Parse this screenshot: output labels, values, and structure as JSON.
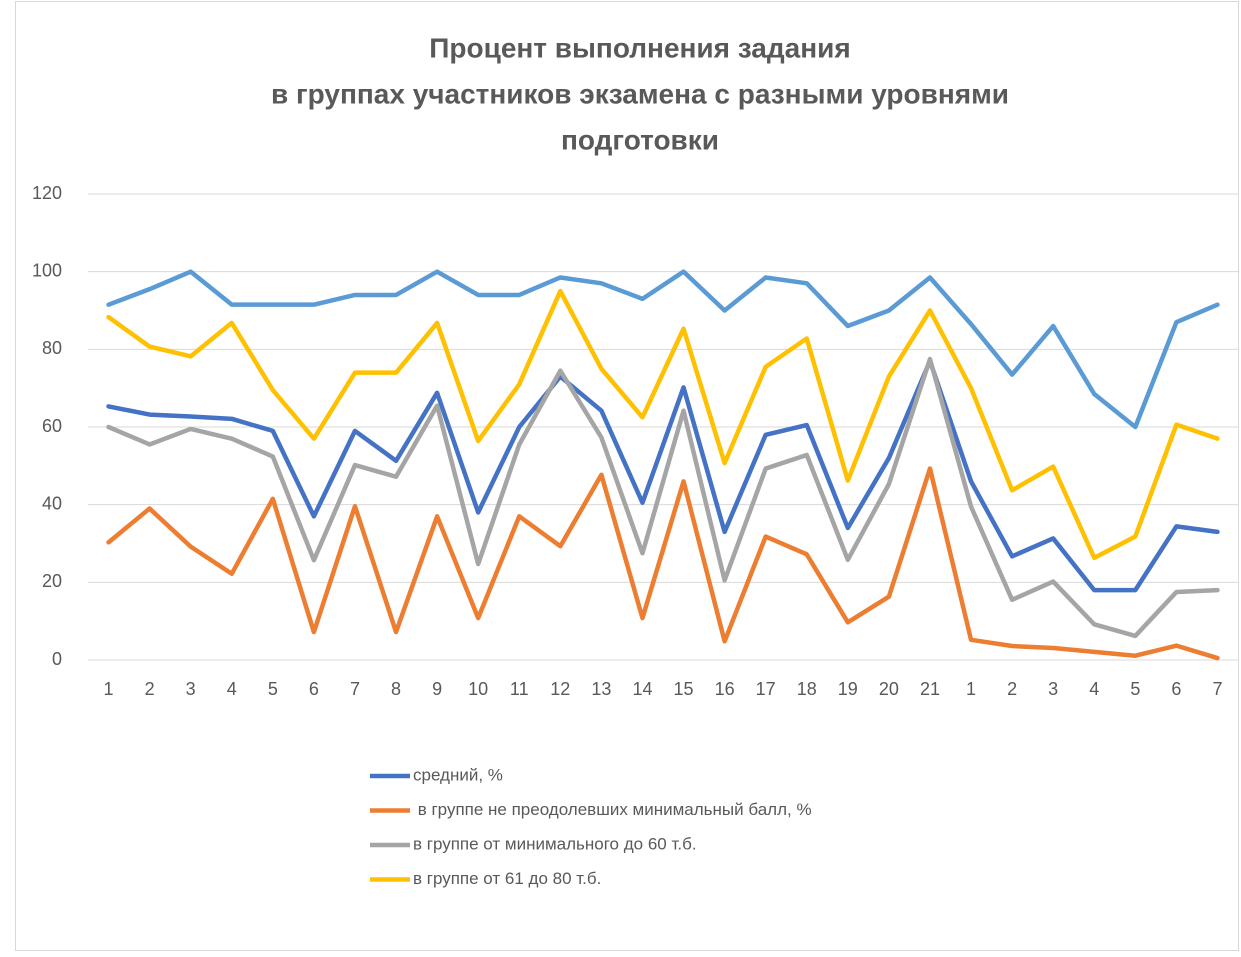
{
  "chart_data": {
    "type": "line",
    "title": [
      "Процент выполнения задания",
      "в группах участников экзамена с разными уровнями",
      "подготовки"
    ],
    "categories": [
      "1",
      "2",
      "3",
      "4",
      "5",
      "6",
      "7",
      "8",
      "9",
      "10",
      "11",
      "12",
      "13",
      "14",
      "15",
      "16",
      "17",
      "18",
      "19",
      "20",
      "21",
      "1",
      "2",
      "3",
      "4",
      "5",
      "6",
      "7"
    ],
    "series": [
      {
        "color": "#5b9bd5",
        "values": [
          91.5,
          95.5,
          100,
          91.5,
          91.5,
          91.5,
          94,
          94,
          100,
          94,
          94,
          98.5,
          97,
          93,
          100,
          90,
          98.5,
          97,
          86,
          90,
          98.5,
          86.5,
          73.5,
          86,
          68.5,
          60,
          87,
          91.5
        ]
      },
      {
        "name": "средний, %",
        "color": "#4472c4",
        "values": [
          65.3,
          63.2,
          62.7,
          62.1,
          59,
          37,
          59,
          51.3,
          68.8,
          38,
          60,
          73,
          64.2,
          40.5,
          70.2,
          33,
          58,
          60.5,
          34,
          52,
          77,
          46,
          26.7,
          31.3,
          18,
          18,
          34.4,
          33
        ]
      },
      {
        "name": " в группе не преодолевших минимальный балл, %",
        "color": "#ed7d31",
        "values": [
          30.3,
          39,
          29.2,
          22.2,
          41.5,
          7.2,
          39.6,
          7.2,
          37,
          10.8,
          37,
          29.3,
          47.7,
          10.8,
          46,
          4.8,
          31.8,
          27.2,
          9.7,
          16.3,
          49.3,
          5.2,
          3.6,
          3.1,
          2.1,
          1.1,
          3.7,
          0.5
        ]
      },
      {
        "name": "в группе от минимального до 60 т.б.",
        "color": "#a5a5a5",
        "values": [
          60,
          55.5,
          59.5,
          57,
          52.4,
          25.7,
          50.2,
          47.2,
          65.5,
          24.7,
          55.5,
          74.5,
          57.3,
          27.5,
          64.2,
          20.5,
          49.3,
          52.8,
          25.8,
          45.3,
          77.5,
          39.5,
          15.5,
          20.2,
          9.2,
          6.2,
          17.5,
          18
        ]
      },
      {
        "name": "в группе от 61 до 80 т.б.",
        "color": "#ffc000",
        "values": [
          88.3,
          80.7,
          78.2,
          86.8,
          69.5,
          57,
          74,
          74,
          86.8,
          56.4,
          71,
          95,
          75,
          62.5,
          85.3,
          50.7,
          75.5,
          82.8,
          46.2,
          73,
          90,
          70,
          43.7,
          49.8,
          26.3,
          31.8,
          60.6,
          57
        ]
      }
    ],
    "ylim": [
      0,
      120
    ],
    "yticks": [
      0,
      20,
      40,
      60,
      80,
      100,
      120
    ],
    "grid": true,
    "legend": "bottom"
  }
}
